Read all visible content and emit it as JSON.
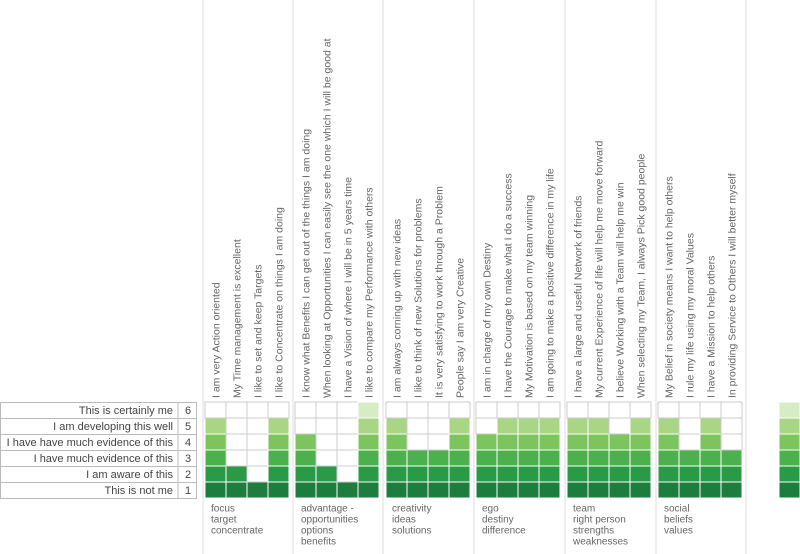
{
  "levels": [
    {
      "number": 6,
      "label": "This is certainly me"
    },
    {
      "number": 5,
      "label": "I am developing this well"
    },
    {
      "number": 4,
      "label": "I have have much evidence of this"
    },
    {
      "number": 3,
      "label": "I have much evidence of this"
    },
    {
      "number": 2,
      "label": "I am aware of this"
    },
    {
      "number": 1,
      "label": "This is not me"
    }
  ],
  "level_colors": [
    "#1c7d3f",
    "#2a9a47",
    "#4cb14d",
    "#7cc45e",
    "#a8d684",
    "#d6ecc4"
  ],
  "groups": [
    {
      "label": [
        "focus",
        "target",
        "concentrate"
      ],
      "statements": [
        "I am very Action oriented",
        "My Time management is excellent",
        "I like to set and keep Targets",
        "I like to Concentrate on things I am doing"
      ],
      "levels": [
        5,
        2,
        1,
        5
      ]
    },
    {
      "label": [
        "advantage -",
        "opportunities",
        "options",
        "benefits"
      ],
      "statements": [
        "I know what Benefits I can get out of the things I am doing",
        "When looking at Opportunities I can easily see the one which I will be good at",
        "I have a Vision of where I will be in 5 years time",
        "I like to compare my Performance with others"
      ],
      "levels": [
        4,
        2,
        1,
        6
      ]
    },
    {
      "label": [
        "creativity",
        "ideas",
        "solutions"
      ],
      "statements": [
        "I am always corning up with new ideas",
        "I like to think of new Solutions for problems",
        "It is very satisfying to work through a Problem",
        "People say I am very Creative"
      ],
      "levels": [
        5,
        3,
        3,
        5
      ]
    },
    {
      "label": [
        "ego",
        "destiny",
        "difference"
      ],
      "statements": [
        "I am in charge of my own Destiny",
        "I have the Courage to make what I do a success",
        "My Motivation is based on my team winning",
        "I am going to make a positive difference in my life"
      ],
      "levels": [
        4,
        5,
        5,
        5
      ]
    },
    {
      "label": [
        "team",
        "right person",
        "strengths",
        "weaknesses"
      ],
      "statements": [
        "I have a large and useful Network of friends",
        "My current Experience of life will help me move forward",
        "I believe Working with a Team will help me win",
        "When selecting my Team, I always Pick good people"
      ],
      "levels": [
        5,
        5,
        4,
        5
      ]
    },
    {
      "label": [
        "social",
        "beliefs",
        "values"
      ],
      "statements": [
        "My Belief in society means I want to help others",
        "I rule my life using my moral Values",
        "I have a Mission to help others",
        "In providing Service to Others I will better myself"
      ],
      "levels": [
        5,
        3,
        5,
        3
      ]
    }
  ],
  "partial_column_level": 6
}
